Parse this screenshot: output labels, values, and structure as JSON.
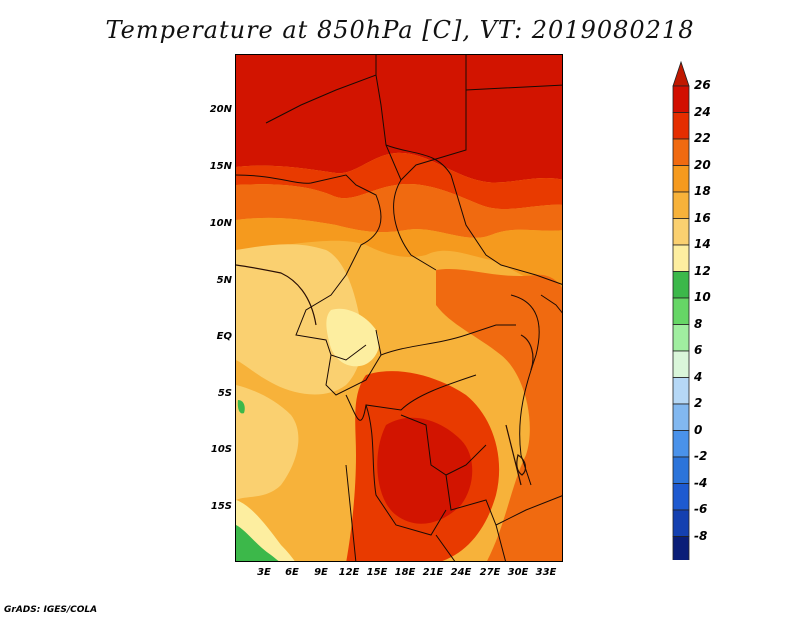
{
  "title": "Temperature at 850hPa [C], VT: 2019080218",
  "credit": "GrADS: IGES/COLA",
  "lat_labels": [
    "20N",
    "15N",
    "10N",
    "5N",
    "EQ",
    "5S",
    "10S",
    "15S"
  ],
  "lon_labels": [
    "3E",
    "6E",
    "9E",
    "12E",
    "15E",
    "18E",
    "21E",
    "24E",
    "27E",
    "30E",
    "33E"
  ],
  "colorbar": {
    "labels": [
      "26",
      "24",
      "22",
      "20",
      "18",
      "16",
      "14",
      "12",
      "10",
      "8",
      "6",
      "4",
      "2",
      "0",
      "-2",
      "-4",
      "-6",
      "-8"
    ],
    "colors": [
      "#d20e00",
      "#e52e00",
      "#f06a10",
      "#f59a1e",
      "#f7b23a",
      "#fad070",
      "#fdeea0",
      "#3cb84a",
      "#66d666",
      "#a0eea0",
      "#daf6da",
      "#b6d8f6",
      "#82b8f0",
      "#4a92ea",
      "#2c74da",
      "#1e5ad0",
      "#1440b0",
      "#0a1e78"
    ]
  }
}
